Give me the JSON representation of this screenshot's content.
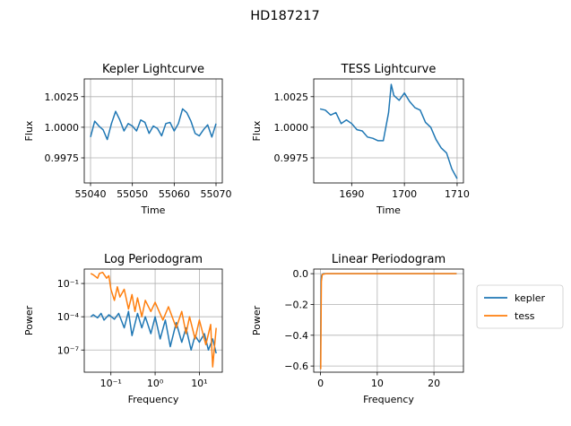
{
  "figure": {
    "suptitle": "HD187217"
  },
  "colors": {
    "kepler": "#1f77b4",
    "tess": "#ff7f0e",
    "grid": "#b0b0b0"
  },
  "chart_data": [
    {
      "id": "kepler_lc",
      "type": "line",
      "title": "Kepler Lightcurve",
      "xlabel": "Time",
      "ylabel": "Flux",
      "grid": true,
      "xlim": [
        55038.5,
        55071.5
      ],
      "ylim": [
        0.99545,
        1.00395
      ],
      "xticks": [
        55040,
        55050,
        55060,
        55070
      ],
      "xticklabels": [
        "55040",
        "55050",
        "55060",
        "55070"
      ],
      "yticks": [
        0.9975,
        1.0,
        1.0025
      ],
      "yticklabels": [
        "0.9975",
        "1.0000",
        "1.0025"
      ],
      "series": [
        {
          "name": "kepler",
          "color": "#1f77b4",
          "x": [
            55040.0,
            55041.0,
            55042.0,
            55043.0,
            55044.0,
            55045.0,
            55046.0,
            55047.0,
            55048.0,
            55049.0,
            55050.0,
            55051.0,
            55052.0,
            55053.0,
            55054.0,
            55055.0,
            55056.0,
            55057.0,
            55058.0,
            55059.0,
            55060.0,
            55061.0,
            55062.0,
            55063.0,
            55064.0,
            55065.0,
            55066.0,
            55067.0,
            55068.0,
            55069.0,
            55070.0
          ],
          "y": [
            0.9992,
            1.0005,
            1.0001,
            0.9998,
            0.999,
            1.0003,
            1.0013,
            1.0006,
            0.9997,
            1.0003,
            1.0001,
            0.9997,
            1.0006,
            1.0004,
            0.9995,
            1.0001,
            0.9999,
            0.9993,
            1.0003,
            1.0004,
            0.9997,
            1.0003,
            1.0015,
            1.0012,
            1.0005,
            0.9995,
            0.9993,
            0.9998,
            1.0002,
            0.9992,
            1.0003
          ]
        }
      ]
    },
    {
      "id": "tess_lc",
      "type": "line",
      "title": "TESS Lightcurve",
      "xlabel": "Time",
      "ylabel": "Flux",
      "grid": true,
      "xlim": [
        1682.8,
        1711.2
      ],
      "ylim": [
        0.99545,
        1.00395
      ],
      "xticks": [
        1690,
        1700,
        1710
      ],
      "xticklabels": [
        "1690",
        "1700",
        "1710"
      ],
      "yticks": [
        0.9975,
        1.0,
        1.0025
      ],
      "yticklabels": [
        "0.9975",
        "1.0000",
        "1.0025"
      ],
      "series": [
        {
          "name": "tess",
          "color": "#1f77b4",
          "x": [
            1684.0,
            1685.0,
            1686.0,
            1687.0,
            1688.0,
            1689.0,
            1690.0,
            1691.0,
            1692.0,
            1693.0,
            1694.0,
            1695.0,
            1696.0,
            1697.0,
            1697.5,
            1698.0,
            1699.0,
            1700.0,
            1701.0,
            1702.0,
            1703.0,
            1704.0,
            1705.0,
            1706.0,
            1707.0,
            1708.0,
            1709.0,
            1709.5,
            1710.0
          ],
          "y": [
            1.0015,
            1.0014,
            1.001,
            1.0012,
            1.0003,
            1.0006,
            1.0003,
            0.9998,
            0.9997,
            0.9992,
            0.9991,
            0.9989,
            0.9989,
            1.0012,
            1.0035,
            1.0026,
            1.0022,
            1.0028,
            1.0021,
            1.0016,
            1.0014,
            1.0004,
            1.0,
            0.999,
            0.9983,
            0.9979,
            0.9966,
            0.9962,
            0.9958
          ]
        }
      ]
    },
    {
      "id": "log_pg",
      "type": "line",
      "title": "Log Periodogram",
      "xlabel": "Frequency",
      "ylabel": "Power",
      "grid": true,
      "xscale": "log",
      "yscale": "log",
      "xlim": [
        0.025,
        33
      ],
      "ylim": [
        1e-09,
        2
      ],
      "xticks": [
        0.1,
        1,
        10
      ],
      "xticklabels": [
        "10⁻¹",
        "10⁰",
        "10¹"
      ],
      "yticks": [
        1e-07,
        0.0001,
        0.1
      ],
      "yticklabels": [
        "10⁻⁷",
        "10⁻⁴",
        "10⁻¹"
      ],
      "series": [
        {
          "name": "kepler",
          "color": "#1f77b4",
          "x": [
            0.035,
            0.04,
            0.05,
            0.06,
            0.07,
            0.09,
            0.12,
            0.15,
            0.2,
            0.25,
            0.3,
            0.4,
            0.5,
            0.6,
            0.8,
            1.0,
            1.3,
            1.7,
            2.2,
            3.0,
            4.0,
            5.0,
            6.5,
            8.0,
            10.0,
            13.0,
            16.0,
            20.0,
            24.0
          ],
          "y": [
            0.0001,
            0.00015,
            8e-05,
            0.0002,
            5e-05,
            0.00015,
            6e-05,
            0.0002,
            1e-05,
            0.0003,
            2e-06,
            0.0002,
            1e-05,
            0.0001,
            3e-06,
            0.0001,
            1e-06,
            5e-05,
            2e-07,
            3e-05,
            5e-07,
            1e-05,
            1e-07,
            2e-06,
            5e-07,
            3e-06,
            1e-07,
            1e-06,
            5e-08
          ]
        },
        {
          "name": "tess",
          "color": "#ff7f0e",
          "x": [
            0.035,
            0.04,
            0.05,
            0.055,
            0.065,
            0.08,
            0.09,
            0.1,
            0.12,
            0.14,
            0.16,
            0.2,
            0.25,
            0.3,
            0.35,
            0.4,
            0.5,
            0.6,
            0.8,
            1.0,
            1.5,
            2.0,
            3.0,
            4.0,
            5.0,
            6.0,
            8.0,
            10.0,
            14.0,
            18.0,
            20.0,
            24.0
          ],
          "y": [
            0.8,
            0.6,
            0.3,
            0.8,
            1.0,
            0.3,
            0.5,
            0.03,
            0.003,
            0.05,
            0.006,
            0.03,
            0.0005,
            0.01,
            0.0003,
            0.005,
            0.0001,
            0.003,
            0.0003,
            0.002,
            5e-05,
            0.0008,
            1e-05,
            0.0003,
            3e-06,
            0.0001,
            1e-06,
            5e-05,
            3e-07,
            2e-05,
            3e-09,
            1e-05
          ]
        }
      ]
    },
    {
      "id": "lin_pg",
      "type": "line",
      "title": "Linear Periodogram",
      "xlabel": "Frequency",
      "ylabel": "Power",
      "grid": true,
      "xlim": [
        -1.2,
        25.2
      ],
      "ylim": [
        -0.64,
        0.03
      ],
      "xticks": [
        0,
        10,
        20
      ],
      "xticklabels": [
        "0",
        "10",
        "20"
      ],
      "yticks": [
        -0.6,
        -0.4,
        -0.2,
        0.0
      ],
      "yticklabels": [
        "−0.6",
        "−0.4",
        "−0.2",
        "0.0"
      ],
      "legend": {
        "placement": "outside-right-top",
        "entries": [
          "kepler",
          "tess"
        ]
      },
      "series": [
        {
          "name": "kepler",
          "color": "#1f77b4",
          "x": [
            0.0,
            0.1,
            0.2,
            0.5,
            1.0,
            2.0,
            24.0
          ],
          "y": [
            -0.62,
            -0.05,
            -0.01,
            0.0,
            0.0,
            0.0,
            0.0
          ]
        },
        {
          "name": "tess",
          "color": "#ff7f0e",
          "x": [
            0.035,
            0.08,
            0.15,
            0.3,
            1.0,
            5.0,
            24.0
          ],
          "y": [
            -0.62,
            -0.35,
            -0.05,
            -0.005,
            0.0,
            0.0,
            0.0
          ]
        }
      ]
    }
  ]
}
